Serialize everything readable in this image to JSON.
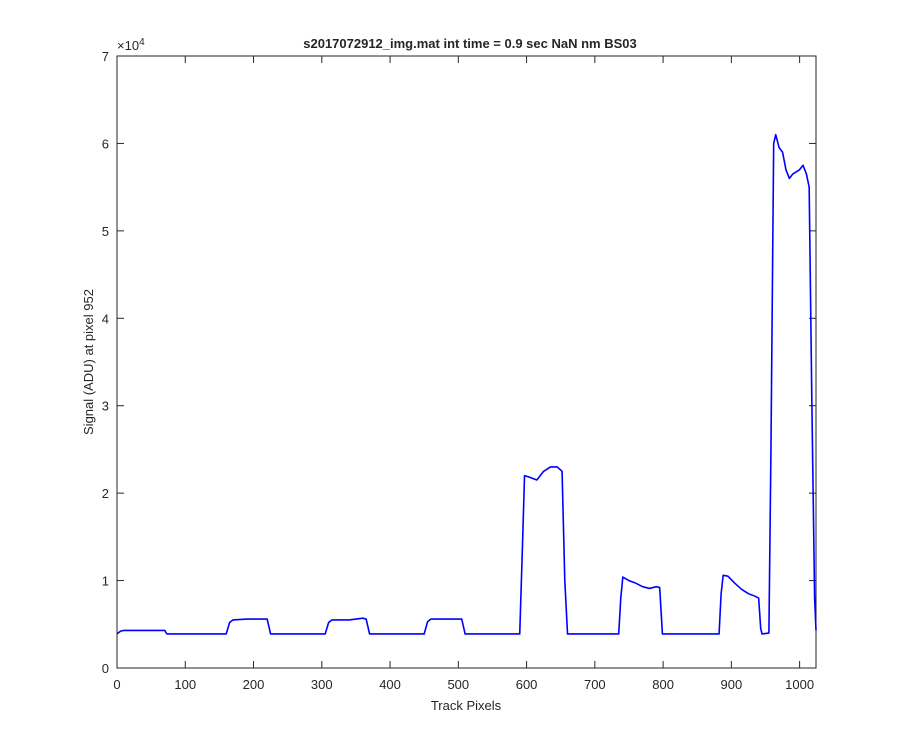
{
  "chart_data": {
    "type": "line",
    "title": "s2017072912_img.mat int time = 0.9 sec  NaN nm BS03",
    "x_label": "Track Pixels",
    "y_label": "Signal (ADU) at pixel 952",
    "y_exponent": {
      "base": "×10",
      "power": "4"
    },
    "color": "#0000ff",
    "xlim": [
      0,
      1024
    ],
    "ylim": [
      0,
      70000
    ],
    "xticks": [
      0,
      100,
      200,
      300,
      400,
      500,
      600,
      700,
      800,
      900,
      1000
    ],
    "yticks": [
      0,
      {
        "value": 10000,
        "label": "1"
      },
      {
        "value": 20000,
        "label": "2"
      },
      {
        "value": 30000,
        "label": "3"
      },
      {
        "value": 40000,
        "label": "4"
      },
      {
        "value": 50000,
        "label": "5"
      },
      {
        "value": 60000,
        "label": "6"
      },
      {
        "value": 70000,
        "label": "7"
      }
    ],
    "grid": false,
    "x": [
      0,
      5,
      10,
      70,
      73,
      160,
      165,
      170,
      190,
      220,
      225,
      305,
      310,
      315,
      340,
      360,
      365,
      370,
      450,
      455,
      460,
      480,
      505,
      510,
      590,
      594,
      597,
      605,
      615,
      625,
      635,
      645,
      652,
      656,
      660,
      735,
      738,
      741,
      750,
      760,
      770,
      780,
      790,
      795,
      799,
      882,
      885,
      888,
      895,
      905,
      915,
      925,
      935,
      940,
      943,
      945,
      955,
      958,
      962,
      965,
      970,
      975,
      980,
      985,
      990,
      1000,
      1005,
      1010,
      1014,
      1018,
      1022,
      1024
    ],
    "values": [
      3900,
      4200,
      4300,
      4300,
      3900,
      3900,
      5200,
      5500,
      5600,
      5600,
      3900,
      3900,
      5200,
      5500,
      5500,
      5700,
      5600,
      3900,
      3900,
      5300,
      5600,
      5600,
      5600,
      3900,
      3900,
      14000,
      22000,
      21800,
      21500,
      22500,
      23000,
      23000,
      22500,
      10000,
      3900,
      3900,
      8000,
      10400,
      10000,
      9700,
      9300,
      9100,
      9300,
      9200,
      3900,
      3900,
      8500,
      10600,
      10500,
      9700,
      9000,
      8500,
      8200,
      8000,
      4500,
      3900,
      4000,
      25000,
      60000,
      61000,
      59500,
      59000,
      57000,
      56000,
      56500,
      57000,
      57500,
      56500,
      55000,
      30000,
      8000,
      4300
    ]
  }
}
